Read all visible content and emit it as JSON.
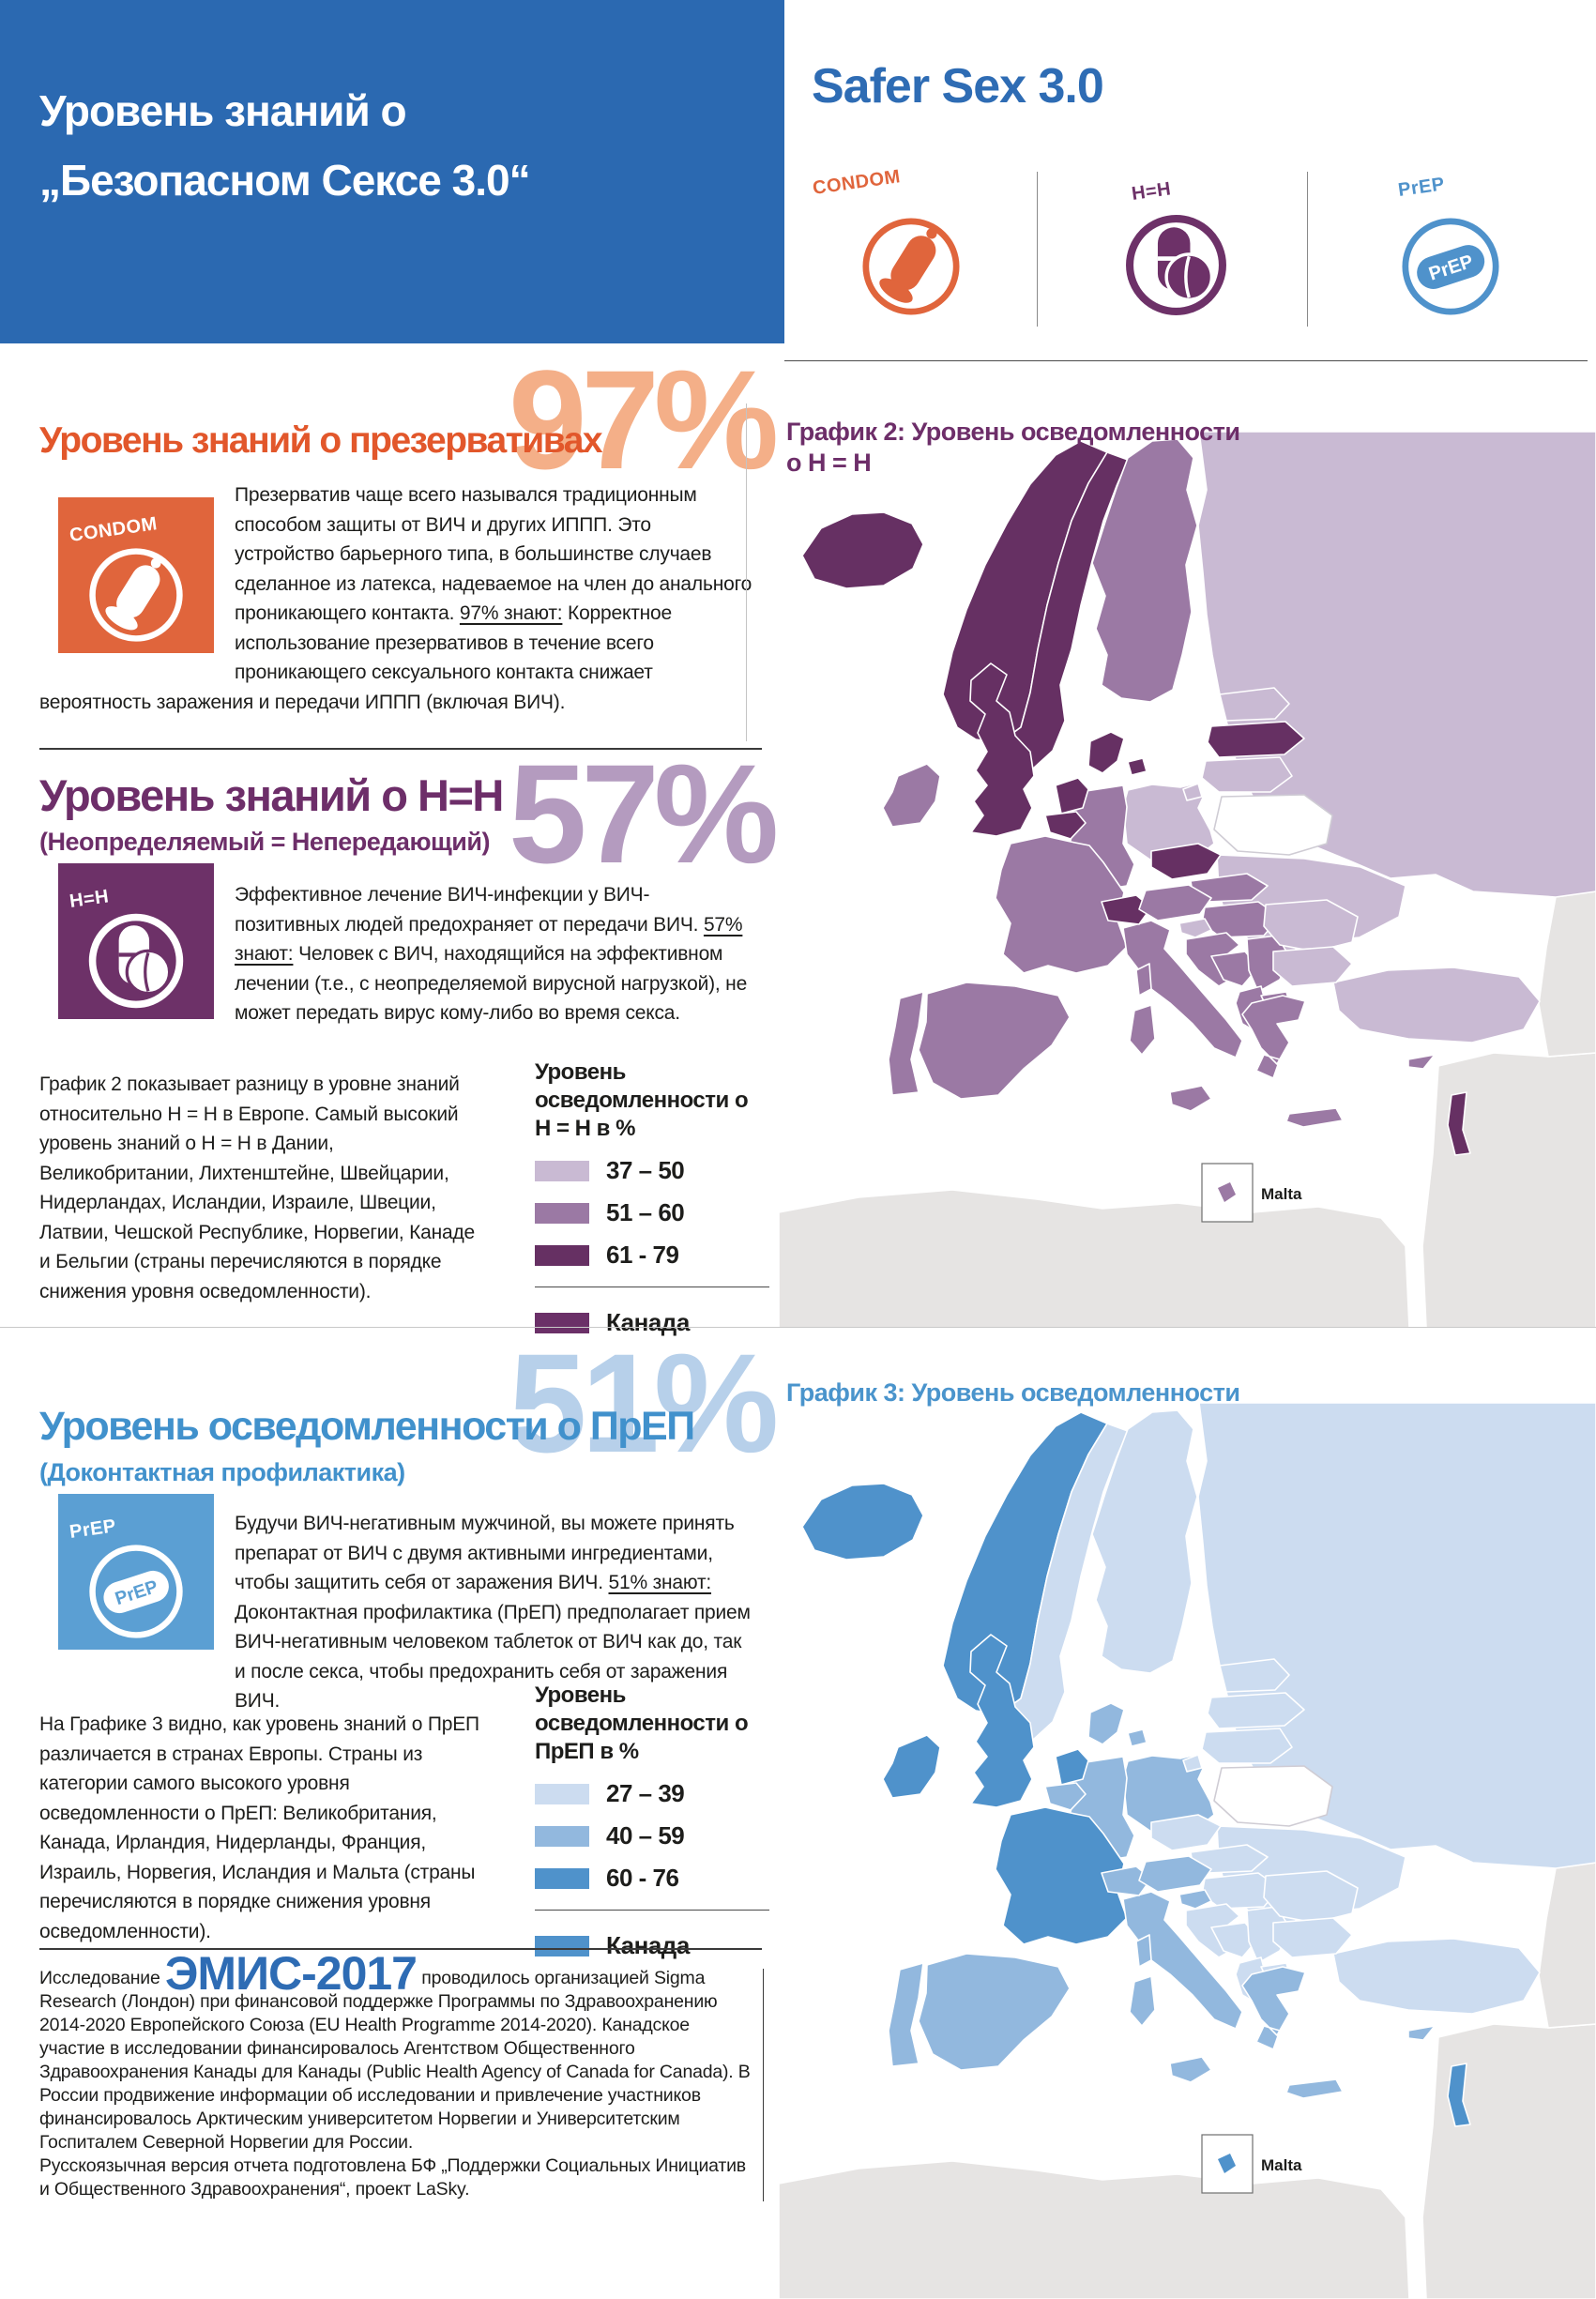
{
  "page": {
    "header": {
      "title_line1": "Уровень знаний о",
      "title_line2": "„Безопасном Сексе 3.0“",
      "brand": "Safer Sex 3.0",
      "icons": [
        {
          "label": "CONDOM",
          "type": "condom",
          "color": "#e0653c"
        },
        {
          "label": "Н=Н",
          "type": "pills",
          "color": "#6d3168"
        },
        {
          "label": "PrEP",
          "type": "prep",
          "color": "#4f92cb",
          "pill_text": "PrEP"
        }
      ]
    },
    "condom": {
      "heading": "Уровень знаний о презервативах",
      "percent": "97%",
      "box_label": "CONDOM",
      "body_pre": "Презерватив чаще всего назывался традиционным способом защиты от ВИЧ и других ИППП. Это устройство барьерного типа, в большинстве случаев сделанное из латекса, надеваемое на член до анального проникающего контакта. ",
      "body_u": "97% знают:",
      "body_post": " Корректное использование презервативов в течение всего проникающего сексуального контакта снижает вероятность заражения и передачи ИППП (включая ВИЧ)."
    },
    "uu": {
      "heading": "Уровень знаний о Н=Н",
      "subheading": "(Неопределяемый = Непередающий)",
      "percent": "57%",
      "box_label": "Н=Н",
      "body_pre": "Эффективное лечение ВИЧ-инфекции у ВИЧ-позитивных людей предохраняет от передачи ВИЧ. ",
      "body_u": "57% знают:",
      "body_post": " Человек с ВИЧ, находящийся на эффективном лечении (т.е., с неопределяемой вирусной нагрузкой), не может передать вирус кому-либо во время секса.",
      "para2": "График 2 показывает разницу в уровне знаний относительно Н = Н в Европе. Самый высокий уровень знаний о Н = Н в Дании, Великобритании, Лихтенштейне, Швейцарии, Нидерландах, Исландии, Израиле, Швеции, Латвии, Чешской Республике, Норвегии, Канаде и Бельгии (страны перечисляются в порядке снижения уровня осведомленности)."
    },
    "prep": {
      "heading": "Уровень осведомленности о ПрЕП",
      "subheading": "(Доконтактная профилактика)",
      "percent": "51%",
      "box_label": "PrEP",
      "body_pre": "Будучи ВИЧ-негативным мужчиной, вы можете принять препарат от ВИЧ с двумя активными ингредиентами, чтобы защитить себя от заражения ВИЧ. ",
      "body_u": "51% знают:",
      "body_post": " Доконтактная профилактика (ПрЕП) предполагает прием ВИЧ-негативным человеком таблеток от ВИЧ как до, так и после секса, чтобы предохранить себя от заражения ВИЧ.",
      "para2": "На Графике 3 видно, как уровень знаний о ПрЕП различается в странах Европы. Страны из категории самого высокого уровня осведомленности о ПрЕП: Великобритания, Канада, Ирландия, Нидерланды, Франция, Израиль, Норвегия, Исландия и Мальта (страны перечисляются в порядке снижения уровня осведомленности)."
    },
    "footnote": {
      "pre": "Исследование ",
      "big": "ЭМИС-2017",
      "post": " проводилось организацией Sigma Research (Лондон) при финансовой поддержке Программы по Здравоохранению 2014-2020 Европейского Союза (EU Health Programme 2014-2020). Канадское участие в исследовании финансировалось Агентством Общественного Здравоохранения Канады для Канады (Public Health Agency of Canada for Canada). В России продвижение информации об исследовании и привлечение участников финансировалось Арктическим университетом Норвегии и Университетским Госпиталем Северной Норвегии для России.",
      "line2": "Русскоязычная версия отчета подготовлена  БФ „Поддержки Социальных Инициатив и Общественного Здравоохранения“, проект LaSky."
    },
    "colors": {
      "header_bg": "#2b69b1",
      "orange_heading": "#e2572b",
      "orange_pct": "#f4af88",
      "purple_heading": "#6d2e69",
      "purple_pct": "#b49bbf",
      "blue_heading": "#4191cc",
      "blue_pct": "#b7d0ea"
    }
  },
  "chart_data": [
    {
      "type": "choropleth",
      "title_line1": "График 2: Уровень осведомленности",
      "title_line2": "о Н = Н",
      "legend_title_line1": "Уровень осведомленности о",
      "legend_title_line2": "Н = Н  в %",
      "buckets": [
        {
          "label": "37 – 50",
          "color": "#c9bad3"
        },
        {
          "label": "51 – 60",
          "color": "#9b79a4"
        },
        {
          "label": "61 - 79",
          "color": "#663063"
        }
      ],
      "reference": {
        "label": "Канада",
        "color": "#6b3068"
      },
      "inset_label": "Malta",
      "countries": {
        "iceland": 2,
        "norway": 2,
        "sweden": 2,
        "finland": 1,
        "denmark": 2,
        "uk": 2,
        "ireland": 1,
        "estonia": 0,
        "latvia": 2,
        "lithuania": 0,
        "kaliningrad": 0,
        "russia": 0,
        "belarus": -1,
        "ukraine": 0,
        "poland": 0,
        "germany": 1,
        "netherlands": 2,
        "belgium": 2,
        "france": 1,
        "switzerland": 2,
        "czechia": 2,
        "slovakia": 1,
        "austria": 1,
        "hungary": 1,
        "spain": 1,
        "portugal": 1,
        "italy": 1,
        "sicily": 1,
        "sardinia": 1,
        "corsica": 1,
        "slovenia": 0,
        "croatia": 1,
        "bosnia": 1,
        "serbia": 1,
        "montenegro_albania": 1,
        "macedonia": 1,
        "romania": 0,
        "bulgaria": 0,
        "greece": 1,
        "turkey": 0,
        "cyprus": 1,
        "israel": 2,
        "malta": 1
      }
    },
    {
      "type": "choropleth",
      "title_line1": "График 3: Уровень осведомленности",
      "title_line2": "",
      "legend_title_line1": "Уровень осведомленности о",
      "legend_title_line2": "ПрЕП в %",
      "buckets": [
        {
          "label": "27 – 39",
          "color": "#ccdcf0"
        },
        {
          "label": "40 – 59",
          "color": "#92b8de"
        },
        {
          "label": "60 - 76",
          "color": "#4f92cb"
        }
      ],
      "reference": {
        "label": "Канада",
        "color": "#4f92cb"
      },
      "inset_label": "Malta",
      "countries": {
        "iceland": 2,
        "norway": 2,
        "sweden": 0,
        "finland": 0,
        "denmark": 1,
        "uk": 2,
        "ireland": 2,
        "estonia": 0,
        "latvia": 0,
        "lithuania": 0,
        "kaliningrad": 0,
        "russia": 0,
        "belarus": -1,
        "ukraine": 0,
        "poland": 1,
        "germany": 1,
        "netherlands": 2,
        "belgium": 1,
        "france": 2,
        "switzerland": 1,
        "czechia": 0,
        "slovakia": 0,
        "austria": 1,
        "hungary": 0,
        "spain": 1,
        "portugal": 1,
        "italy": 1,
        "sicily": 1,
        "sardinia": 1,
        "corsica": 1,
        "slovenia": 1,
        "croatia": 0,
        "bosnia": 0,
        "serbia": 0,
        "montenegro_albania": 0,
        "macedonia": 0,
        "romania": 0,
        "bulgaria": 0,
        "greece": 1,
        "turkey": 0,
        "cyprus": 1,
        "israel": 2,
        "malta": 2
      }
    }
  ]
}
